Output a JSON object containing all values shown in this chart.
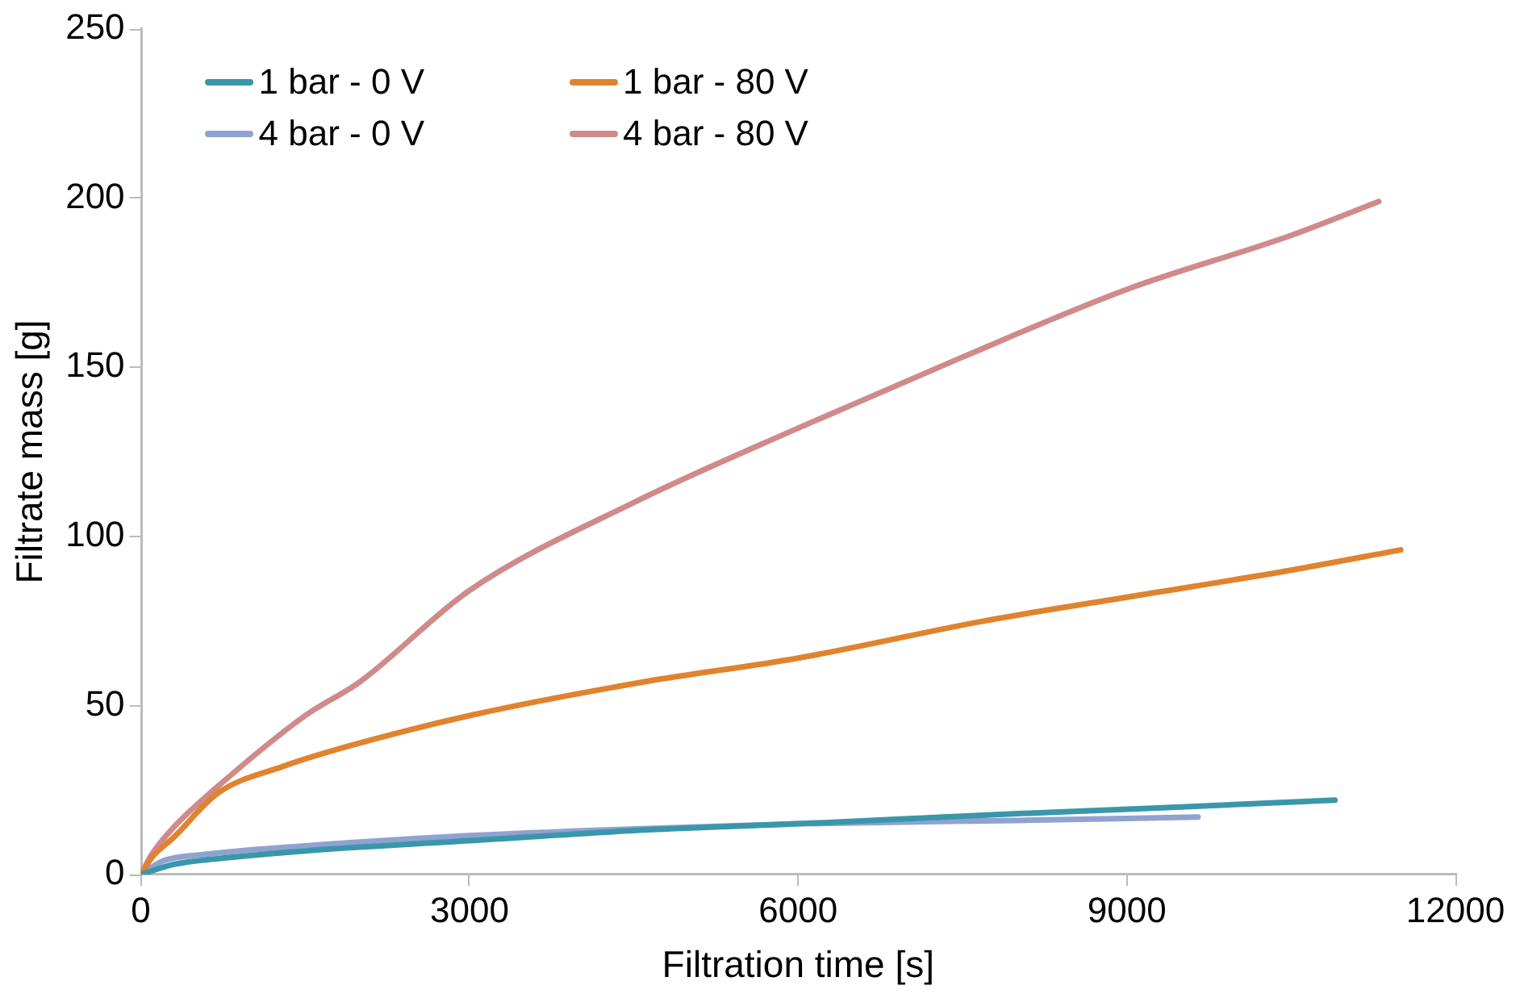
{
  "chart_data": {
    "type": "line",
    "xlabel": "Filtration time [s]",
    "ylabel": "Filtrate mass [g]",
    "xlim": [
      0,
      12000
    ],
    "xticks": [
      0,
      3000,
      6000,
      9000,
      12000
    ],
    "ylim": [
      0,
      250
    ],
    "yticks": [
      0,
      50,
      100,
      150,
      200,
      250
    ],
    "grid": false,
    "legend": "top left",
    "marker": "none",
    "line_style": "solid",
    "series": [
      {
        "name": "1 bar - 0 V",
        "color": "#3a97ab",
        "x": [
          0,
          300,
          800,
          1500,
          3000,
          4500,
          6000,
          8000,
          9500,
          10900
        ],
        "values": [
          0,
          3,
          5,
          7,
          10,
          13,
          15,
          18,
          20,
          22
        ]
      },
      {
        "name": "1 bar - 80 V",
        "color": "#e0832f",
        "x": [
          0,
          100,
          300,
          700,
          1300,
          1900,
          3000,
          4600,
          6000,
          7700,
          9000,
          10500,
          11500
        ],
        "values": [
          0,
          5,
          11,
          24,
          32,
          38,
          47,
          57,
          64,
          75,
          82,
          90,
          96
        ]
      },
      {
        "name": "4 bar - 0 V",
        "color": "#8fa3d0",
        "x": [
          0,
          200,
          600,
          1500,
          3000,
          4500,
          6000,
          8000,
          9650
        ],
        "values": [
          0,
          4,
          6,
          8.5,
          11.5,
          13.5,
          15,
          16,
          17
        ]
      },
      {
        "name": "4 bar - 80 V",
        "color": "#d08a8a",
        "x": [
          0,
          100,
          300,
          700,
          1500,
          2000,
          3000,
          4500,
          6000,
          7500,
          9000,
          10500,
          11300
        ],
        "values": [
          0,
          6,
          14,
          26,
          47,
          57,
          84,
          110,
          132,
          153,
          173,
          189,
          199
        ]
      }
    ]
  }
}
